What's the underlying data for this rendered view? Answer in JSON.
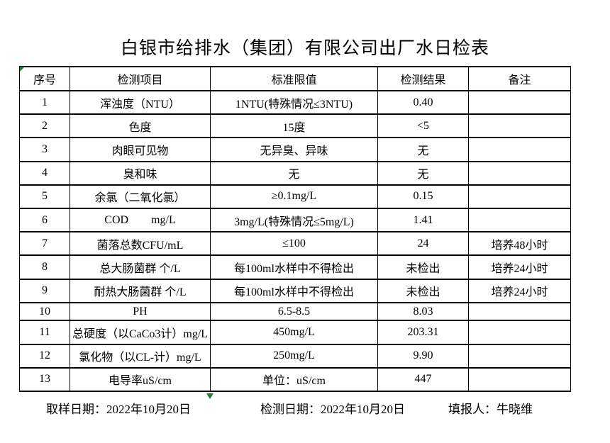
{
  "page": {
    "title": "白银市给排水（集团）有限公司出厂水日检表",
    "background_color": "#ffffff",
    "text_color": "#000000",
    "border_color": "#000000",
    "marker_color": "#1e7b2e"
  },
  "icons": {
    "corner_marker": "excel-green-corner-marker",
    "bottom_marker": "excel-green-triangle-marker"
  },
  "table": {
    "headers": [
      "序号",
      "检测项目",
      "标准限值",
      "检测结果",
      "备注"
    ],
    "rows": [
      {
        "no": "1",
        "item": "浑浊度（NTU）",
        "limit": "1NTU(特殊情况≤3NTU)",
        "result": "0.40",
        "note": ""
      },
      {
        "no": "2",
        "item": "色度",
        "limit": "15度",
        "result": "<5",
        "note": ""
      },
      {
        "no": "3",
        "item": "肉眼可见物",
        "limit": "无异臭、异味",
        "result": "无",
        "note": ""
      },
      {
        "no": "4",
        "item": "臭和味",
        "limit": "无",
        "result": "无",
        "note": ""
      },
      {
        "no": "5",
        "item": "余氯（二氧化氯）",
        "limit": "≥0.1mg/L",
        "result": "0.15",
        "note": ""
      },
      {
        "no": "6",
        "item": "COD        mg/L",
        "limit": "3mg/L(特殊情况≤5mg/L)",
        "result": "1.41",
        "note": ""
      },
      {
        "no": "7",
        "item": "菌落总数CFU/mL",
        "limit": "≤100",
        "result": "24",
        "note": "培养48小时"
      },
      {
        "no": "8",
        "item": "总大肠菌群 个/L",
        "limit": "每100ml水样中不得检出",
        "result": "未检出",
        "note": "培养24小时"
      },
      {
        "no": "9",
        "item": "耐热大肠菌群 个/L",
        "limit": "每100ml水样中不得检出",
        "result": "未检出",
        "note": "培养24小时"
      },
      {
        "no": "10",
        "item": "PH",
        "limit": "6.5-8.5",
        "result": "8.03",
        "note": ""
      },
      {
        "no": "11",
        "item": "总硬度（以CaCo3计）mg/L",
        "limit": "450mg/L",
        "result": "203.31",
        "note": ""
      },
      {
        "no": "12",
        "item": "氯化物（以CL-计）mg/L",
        "limit": "250mg/L",
        "result": "9.90",
        "note": ""
      },
      {
        "no": "13",
        "item": "电导率uS/cm",
        "limit": "单位：uS/cm",
        "result": "447",
        "note": ""
      }
    ]
  },
  "footer": {
    "sampling": "取样日期：2022年10月20日",
    "testing": "检测日期：2022年10月20日",
    "reporter": "填报人：牛晓维"
  }
}
